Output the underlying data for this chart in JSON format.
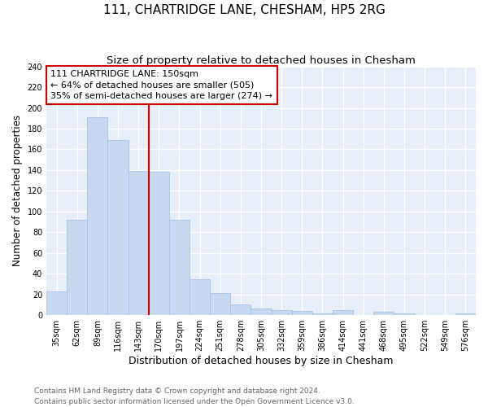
{
  "title": "111, CHARTRIDGE LANE, CHESHAM, HP5 2RG",
  "subtitle": "Size of property relative to detached houses in Chesham",
  "xlabel": "Distribution of detached houses by size in Chesham",
  "ylabel": "Number of detached properties",
  "categories": [
    "35sqm",
    "62sqm",
    "89sqm",
    "116sqm",
    "143sqm",
    "170sqm",
    "197sqm",
    "224sqm",
    "251sqm",
    "278sqm",
    "305sqm",
    "332sqm",
    "359sqm",
    "386sqm",
    "414sqm",
    "441sqm",
    "468sqm",
    "495sqm",
    "522sqm",
    "549sqm",
    "576sqm"
  ],
  "values": [
    23,
    92,
    191,
    169,
    139,
    138,
    92,
    35,
    21,
    10,
    6,
    5,
    4,
    2,
    5,
    0,
    3,
    2,
    0,
    0,
    2
  ],
  "bar_color": "#c8d9ef",
  "bar_edge_color": "#a0bee0",
  "background_color": "#e8eef7",
  "grid_color": "#ffffff",
  "fig_background": "#ffffff",
  "property_line_color": "#cc0000",
  "annotation_text": "111 CHARTRIDGE LANE: 150sqm\n← 64% of detached houses are smaller (505)\n35% of semi-detached houses are larger (274) →",
  "annotation_box_color": "#ffffff",
  "annotation_box_edge": "#cc0000",
  "ylim": [
    0,
    240
  ],
  "yticks": [
    0,
    20,
    40,
    60,
    80,
    100,
    120,
    140,
    160,
    180,
    200,
    220,
    240
  ],
  "footer_text": "Contains HM Land Registry data © Crown copyright and database right 2024.\nContains public sector information licensed under the Open Government Licence v3.0.",
  "title_fontsize": 11,
  "subtitle_fontsize": 9.5,
  "xlabel_fontsize": 9,
  "ylabel_fontsize": 8.5,
  "tick_fontsize": 7,
  "annotation_fontsize": 8,
  "footer_fontsize": 6.5
}
